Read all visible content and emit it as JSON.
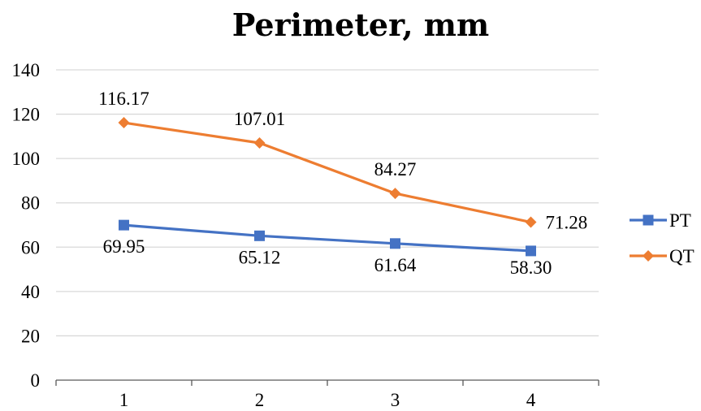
{
  "chart_data": {
    "type": "line",
    "title": "Perimeter, mm",
    "xlabel": "",
    "ylabel": "",
    "categories": [
      "1",
      "2",
      "3",
      "4"
    ],
    "ylim": [
      0,
      140
    ],
    "yticks": [
      0,
      20,
      40,
      60,
      80,
      100,
      120,
      140
    ],
    "grid": true,
    "legend_position": "right",
    "series": [
      {
        "name": "PT",
        "values": [
          69.95,
          65.12,
          61.64,
          58.3
        ],
        "labels": [
          "69.95",
          "65.12",
          "61.64",
          "58.30"
        ],
        "color": "#4472C4",
        "marker": "square"
      },
      {
        "name": "QT",
        "values": [
          116.17,
          107.01,
          84.27,
          71.28
        ],
        "labels": [
          "116.17",
          "107.01",
          "84.27",
          "71.28"
        ],
        "color": "#ED7D31",
        "marker": "diamond"
      }
    ]
  }
}
